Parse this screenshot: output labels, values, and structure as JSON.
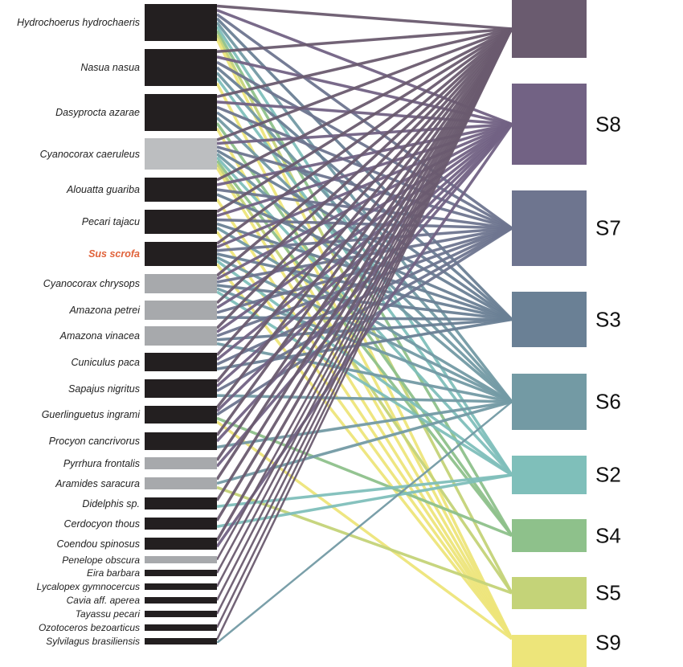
{
  "species": [
    {
      "name": "Hydrochoerus hydrochaeris",
      "type": "mammal",
      "links": [
        "S1",
        "S8",
        "S7",
        "S3",
        "S6",
        "S2",
        "S4",
        "S5",
        "S9"
      ]
    },
    {
      "name": "Nasua nasua",
      "type": "mammal",
      "links": [
        "S1",
        "S8",
        "S7",
        "S3",
        "S6",
        "S2",
        "S9"
      ]
    },
    {
      "name": "Dasyprocta azarae",
      "type": "mammal",
      "links": [
        "S1",
        "S8",
        "S7",
        "S3",
        "S6",
        "S4",
        "S9"
      ]
    },
    {
      "name": "Cyanocorax caeruleus",
      "type": "bird-light",
      "links": [
        "S1",
        "S8",
        "S7",
        "S3",
        "S6",
        "S2",
        "S4",
        "S5",
        "S9"
      ]
    },
    {
      "name": "Alouatta guariba",
      "type": "mammal",
      "links": [
        "S1",
        "S8",
        "S7",
        "S3",
        "S9"
      ]
    },
    {
      "name": "Pecari tajacu",
      "type": "mammal",
      "links": [
        "S1",
        "S8",
        "S7",
        "S3",
        "S6",
        "S9"
      ]
    },
    {
      "name": "Sus scrofa",
      "type": "mammal",
      "highlight": true,
      "links": [
        "S1",
        "S8",
        "S7",
        "S3",
        "S6",
        "S2",
        "S9"
      ]
    },
    {
      "name": "Cyanocorax chrysops",
      "type": "bird",
      "links": [
        "S1",
        "S8",
        "S7",
        "S3",
        "S6",
        "S2"
      ]
    },
    {
      "name": "Amazona petrei",
      "type": "bird",
      "links": [
        "S1",
        "S8",
        "S7",
        "S3"
      ]
    },
    {
      "name": "Amazona vinacea",
      "type": "bird",
      "links": [
        "S1",
        "S8",
        "S7",
        "S3",
        "S6"
      ]
    },
    {
      "name": "Cuniculus paca",
      "type": "mammal",
      "links": [
        "S1",
        "S8",
        "S7",
        "S3"
      ]
    },
    {
      "name": "Sapajus nigritus",
      "type": "mammal",
      "links": [
        "S1",
        "S8",
        "S7",
        "S6"
      ]
    },
    {
      "name": "Guerlinguetus ingrami",
      "type": "mammal",
      "links": [
        "S1",
        "S8",
        "S7",
        "S4",
        "S9"
      ]
    },
    {
      "name": "Procyon cancrivorus",
      "type": "mammal",
      "links": [
        "S1",
        "S8",
        "S6"
      ]
    },
    {
      "name": "Pyrrhura frontalis",
      "type": "bird",
      "links": [
        "S1",
        "S8"
      ]
    },
    {
      "name": "Aramides saracura",
      "type": "bird",
      "links": [
        "S1",
        "S6",
        "S5"
      ]
    },
    {
      "name": "Didelphis sp.",
      "type": "mammal",
      "links": [
        "S1",
        "S2"
      ]
    },
    {
      "name": "Cerdocyon thous",
      "type": "mammal",
      "links": [
        "S1",
        "S2"
      ]
    },
    {
      "name": "Coendou spinosus",
      "type": "mammal",
      "links": [
        "S1",
        "S8"
      ]
    },
    {
      "name": "Penelope obscura",
      "type": "bird",
      "links": [
        "S1"
      ]
    },
    {
      "name": "Eira barbara",
      "type": "mammal",
      "links": [
        "S1"
      ]
    },
    {
      "name": "Lycalopex gymnocercus",
      "type": "mammal",
      "links": [
        "S1"
      ]
    },
    {
      "name": "Cavia aff. aperea",
      "type": "mammal",
      "links": [
        "S1"
      ]
    },
    {
      "name": "Tayassu pecari",
      "type": "mammal",
      "links": [
        "S1"
      ]
    },
    {
      "name": "Ozotoceros bezoarticus",
      "type": "mammal",
      "links": [
        "S1"
      ]
    },
    {
      "name": "Sylvilagus brasiliensis",
      "type": "mammal",
      "links": [
        "S1",
        "S6"
      ]
    }
  ],
  "modules": [
    {
      "id": "S1",
      "label": "",
      "color": "#6a5b6f"
    },
    {
      "id": "S8",
      "label": "S8",
      "color": "#726284"
    },
    {
      "id": "S7",
      "label": "S7",
      "color": "#6e758f"
    },
    {
      "id": "S3",
      "label": "S3",
      "color": "#6a8095"
    },
    {
      "id": "S6",
      "label": "S6",
      "color": "#739aa4"
    },
    {
      "id": "S2",
      "label": "S2",
      "color": "#7fbfba"
    },
    {
      "id": "S4",
      "label": "S4",
      "color": "#8ec18b"
    },
    {
      "id": "S5",
      "label": "S5",
      "color": "#c4d378"
    },
    {
      "id": "S9",
      "label": "S9",
      "color": "#ede57a"
    }
  ],
  "colors": {
    "mammal": "#231f20",
    "bird": "#a7a9ac",
    "bird-light": "#bcbec0",
    "highlight": "#e0623a"
  }
}
